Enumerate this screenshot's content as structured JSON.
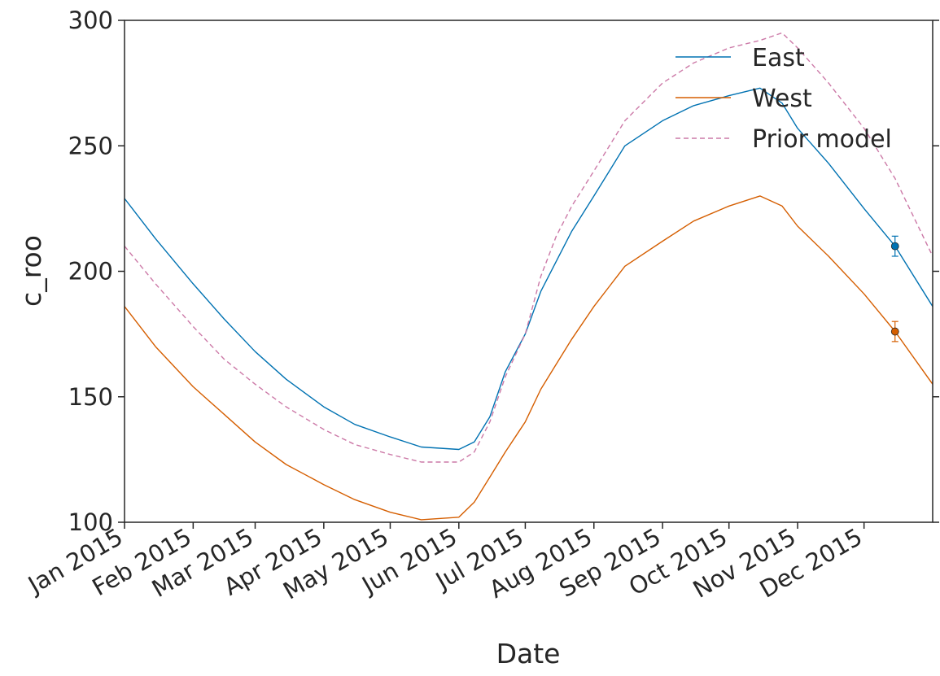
{
  "chart_data": {
    "type": "line",
    "title": "",
    "xlabel": "Date",
    "ylabel": "c_roo",
    "ylim": [
      100,
      300
    ],
    "yticks": [
      100,
      150,
      200,
      250,
      300
    ],
    "xlim": [
      "2015-01-01",
      "2016-01-01"
    ],
    "x_tick_labels": [
      "Jan 2015",
      "Feb 2015",
      "Mar 2015",
      "Apr 2015",
      "May 2015",
      "Jun 2015",
      "Jul 2015",
      "Aug 2015",
      "Sep 2015",
      "Oct 2015",
      "Nov 2015",
      "Dec 2015"
    ],
    "grid": false,
    "legend_position": "top-right",
    "series": [
      {
        "name": "East",
        "color": "#0072b2",
        "style": "solid",
        "x": [
          "2015-01-01",
          "2015-01-15",
          "2015-02-01",
          "2015-02-15",
          "2015-03-01",
          "2015-03-15",
          "2015-04-01",
          "2015-04-15",
          "2015-05-01",
          "2015-05-15",
          "2015-06-01",
          "2015-06-08",
          "2015-06-15",
          "2015-06-22",
          "2015-07-01",
          "2015-07-08",
          "2015-07-15",
          "2015-07-22",
          "2015-08-01",
          "2015-08-08",
          "2015-08-15",
          "2015-09-01",
          "2015-09-15",
          "2015-10-01",
          "2015-10-15",
          "2015-10-25",
          "2015-11-01",
          "2015-11-15",
          "2015-12-01",
          "2015-12-15",
          "2016-01-01"
        ],
        "y": [
          229,
          213,
          195,
          181,
          168,
          157,
          146,
          139,
          134,
          130,
          129,
          132,
          142,
          160,
          175,
          192,
          204,
          216,
          230,
          240,
          250,
          260,
          266,
          270,
          273,
          267,
          257,
          243,
          225,
          210,
          186
        ]
      },
      {
        "name": "West",
        "color": "#d55e00",
        "style": "solid",
        "x": [
          "2015-01-01",
          "2015-01-15",
          "2015-02-01",
          "2015-02-15",
          "2015-03-01",
          "2015-03-15",
          "2015-04-01",
          "2015-04-15",
          "2015-05-01",
          "2015-05-15",
          "2015-06-01",
          "2015-06-08",
          "2015-06-15",
          "2015-06-22",
          "2015-07-01",
          "2015-07-08",
          "2015-07-15",
          "2015-07-22",
          "2015-08-01",
          "2015-08-08",
          "2015-08-15",
          "2015-09-01",
          "2015-09-15",
          "2015-10-01",
          "2015-10-15",
          "2015-10-25",
          "2015-11-01",
          "2015-11-15",
          "2015-12-01",
          "2015-12-15",
          "2016-01-01"
        ],
        "y": [
          186,
          170,
          154,
          143,
          132,
          123,
          115,
          109,
          104,
          101,
          102,
          108,
          118,
          128,
          140,
          153,
          163,
          173,
          186,
          194,
          202,
          212,
          220,
          226,
          230,
          226,
          218,
          206,
          191,
          176,
          155
        ]
      },
      {
        "name": "Prior model",
        "color": "#cc79a7",
        "style": "dashed",
        "x": [
          "2015-01-01",
          "2015-01-15",
          "2015-02-01",
          "2015-02-15",
          "2015-03-01",
          "2015-03-15",
          "2015-04-01",
          "2015-04-15",
          "2015-05-01",
          "2015-05-15",
          "2015-06-01",
          "2015-06-08",
          "2015-06-15",
          "2015-06-22",
          "2015-07-01",
          "2015-07-08",
          "2015-07-15",
          "2015-07-22",
          "2015-08-01",
          "2015-08-08",
          "2015-08-15",
          "2015-09-01",
          "2015-09-15",
          "2015-10-01",
          "2015-10-15",
          "2015-10-25",
          "2015-11-01",
          "2015-11-15",
          "2015-12-01",
          "2015-12-15",
          "2016-01-01"
        ],
        "y": [
          210,
          195,
          178,
          165,
          155,
          146,
          137,
          131,
          127,
          124,
          124,
          128,
          140,
          158,
          175,
          198,
          214,
          226,
          240,
          250,
          260,
          275,
          283,
          289,
          292,
          295,
          289,
          275,
          257,
          237,
          206
        ]
      }
    ],
    "error_points": [
      {
        "series": "East",
        "color": "#0072b2",
        "x": "2015-12-15",
        "y": 210,
        "err": 4
      },
      {
        "series": "West",
        "color": "#d55e00",
        "x": "2015-12-15",
        "y": 176,
        "err": 4
      }
    ]
  }
}
